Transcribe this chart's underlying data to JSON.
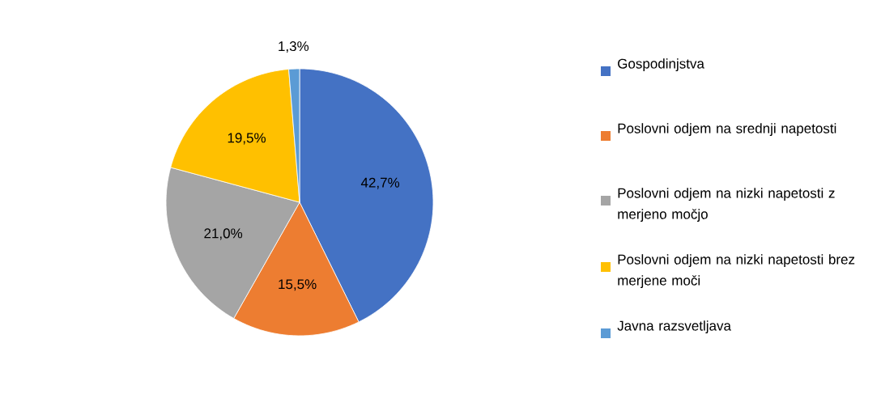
{
  "chart_data": {
    "type": "pie",
    "categories": [
      "Gospodinjstva",
      "Poslovni odjem na srednji napetosti",
      "Poslovni odjem na nizki napetosti z merjeno močjo",
      "Poslovni odjem na nizki napetosti brez merjene moči",
      "Javna razsvetljava"
    ],
    "values": [
      42.7,
      15.5,
      21.0,
      19.5,
      1.3
    ],
    "colors": [
      "#4472c4",
      "#ed7d31",
      "#a5a5a5",
      "#ffc000",
      "#5b9bd5"
    ],
    "value_labels": [
      "42,7%",
      "15,5%",
      "21,0%",
      "19,5%",
      "1,3%"
    ],
    "legend": "right"
  }
}
